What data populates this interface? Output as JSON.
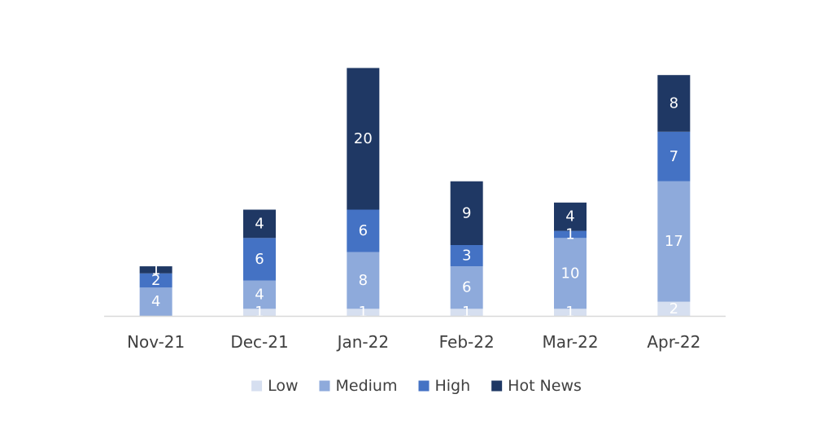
{
  "chart_data": {
    "type": "bar",
    "stacked": true,
    "categories": [
      "Nov-21",
      "Dec-21",
      "Jan-22",
      "Feb-22",
      "Mar-22",
      "Apr-22"
    ],
    "series": [
      {
        "name": "Low",
        "color": "#d6dff0",
        "label_color": "#ffffff",
        "values": [
          0,
          1,
          1,
          1,
          1,
          2
        ]
      },
      {
        "name": "Medium",
        "color": "#8eaadb",
        "label_color": "#ffffff",
        "values": [
          4,
          4,
          8,
          6,
          10,
          17
        ]
      },
      {
        "name": "High",
        "color": "#4472c4",
        "label_color": "#ffffff",
        "values": [
          2,
          6,
          6,
          3,
          1,
          7
        ]
      },
      {
        "name": "Hot News",
        "color": "#1f3864",
        "label_color": "#ffffff",
        "values": [
          1,
          4,
          20,
          9,
          4,
          8
        ]
      }
    ],
    "ylim": [
      0,
      35
    ],
    "grid": false,
    "legend_position": "bottom",
    "title": "",
    "xlabel": "",
    "ylabel": ""
  },
  "colors": {
    "axis_line": "#d9d9d9",
    "tick_text": "#404040"
  }
}
